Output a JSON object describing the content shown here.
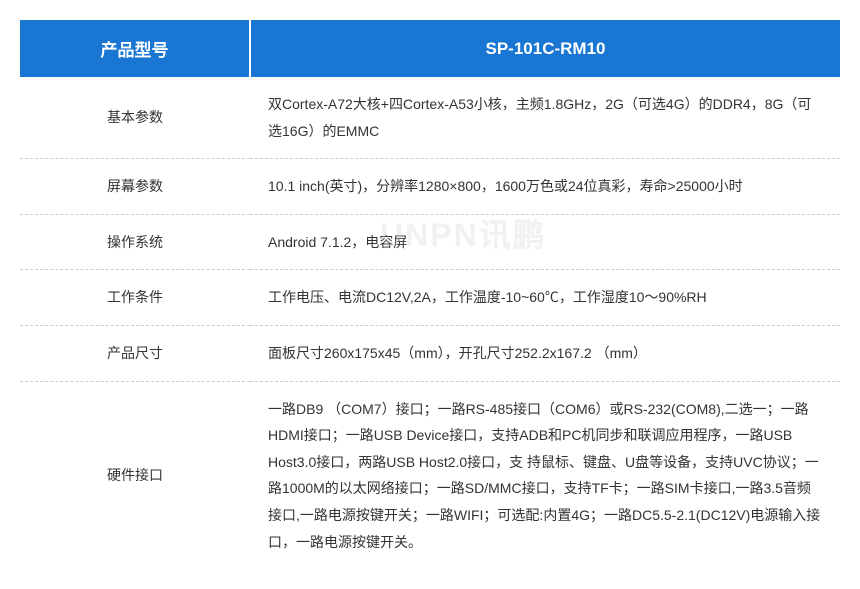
{
  "header": {
    "label_column": "产品型号",
    "value_column": "SP-101C-RM10",
    "background_color": "#1976d2",
    "text_color": "#ffffff",
    "font_size": 17
  },
  "rows": [
    {
      "label": "基本参数",
      "value": "双Cortex-A72大核+四Cortex-A53小核，主频1.8GHz，2G（可选4G）的DDR4，8G（可选16G）的EMMC"
    },
    {
      "label": "屏幕参数",
      "value": "10.1 inch(英寸)，分辨率1280×800，1600万色或24位真彩，寿命>25000小时"
    },
    {
      "label": "操作系统",
      "value": "Android 7.1.2，电容屏"
    },
    {
      "label": "工作条件",
      "value": "工作电压、电流DC12V,2A，工作温度-10~60℃，工作湿度10～90%RH"
    },
    {
      "label": "产品尺寸",
      "value": "面板尺寸260x175x45（mm），开孔尺寸252.2x167.2 （mm）"
    },
    {
      "label": "硬件接口",
      "value": "一路DB9 （COM7）接口；一路RS-485接口（COM6）或RS-232(COM8),二选一；一路HDMI接口；一路USB Device接口，支持ADB和PC机同步和联调应用程序，一路USB Host3.0接口，两路USB Host2.0接口，支 持鼠标、键盘、U盘等设备，支持UVC协议；一路1000M的以太网络接口；一路SD/MMC接口，支持TF卡；一路SIM卡接口,一路3.5音频接口,一路电源按键开关；一路WIFI；可选配:内置4G；一路DC5.5-2.1(DC12V)电源输入接口，一路电源按键开关。"
    }
  ],
  "styling": {
    "border_color": "#cccccc",
    "border_style": "dashed",
    "row_text_color": "#333333",
    "row_font_size": 14,
    "label_column_width": 230,
    "value_column_width": 590,
    "line_height": 1.9
  },
  "watermark": {
    "text": "UNPN讯鹏",
    "color": "rgba(200, 200, 200, 0.25)",
    "font_size": 32
  }
}
